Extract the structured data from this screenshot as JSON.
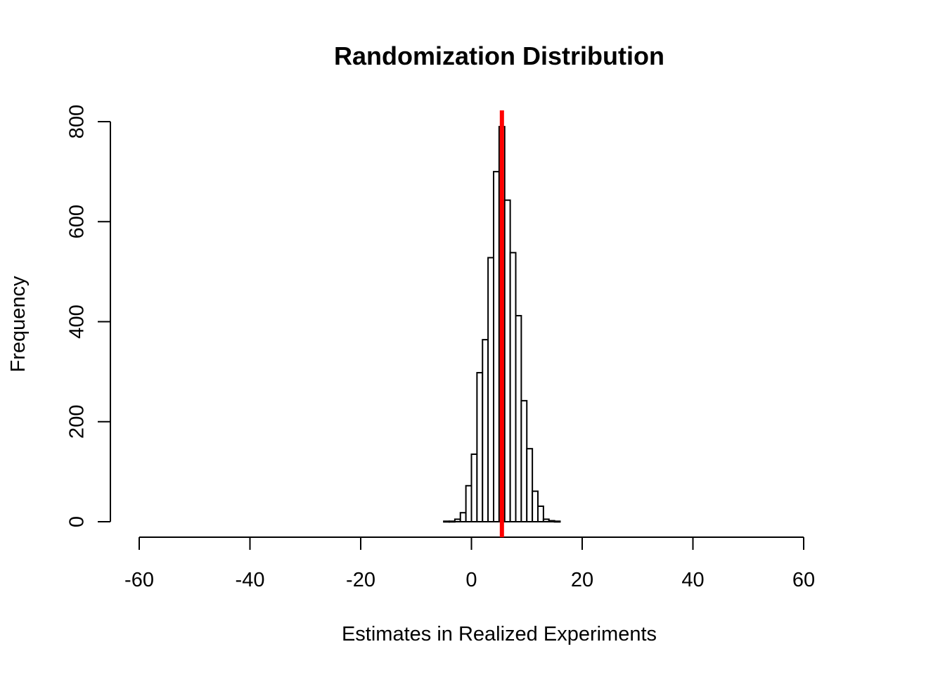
{
  "chart_data": {
    "type": "bar",
    "title": "Randomization Distribution",
    "xlabel": "Estimates in Realized Experiments",
    "ylabel": "Frequency",
    "xlim": [
      -60,
      60
    ],
    "ylim": [
      0,
      800
    ],
    "x_ticks": [
      -60,
      -40,
      -20,
      0,
      20,
      40,
      60
    ],
    "y_ticks": [
      0,
      200,
      400,
      600,
      800
    ],
    "bin_width": 1,
    "bins": [
      {
        "start": -5,
        "end": -4,
        "value": 1
      },
      {
        "start": -4,
        "end": -3,
        "value": 1
      },
      {
        "start": -3,
        "end": -2,
        "value": 5
      },
      {
        "start": -2,
        "end": -1,
        "value": 18
      },
      {
        "start": -1,
        "end": 0,
        "value": 72
      },
      {
        "start": 0,
        "end": 1,
        "value": 135
      },
      {
        "start": 1,
        "end": 2,
        "value": 298
      },
      {
        "start": 2,
        "end": 3,
        "value": 364
      },
      {
        "start": 3,
        "end": 4,
        "value": 528
      },
      {
        "start": 4,
        "end": 5,
        "value": 700
      },
      {
        "start": 5,
        "end": 6,
        "value": 790
      },
      {
        "start": 6,
        "end": 7,
        "value": 643
      },
      {
        "start": 7,
        "end": 8,
        "value": 538
      },
      {
        "start": 8,
        "end": 9,
        "value": 412
      },
      {
        "start": 9,
        "end": 10,
        "value": 242
      },
      {
        "start": 10,
        "end": 11,
        "value": 146
      },
      {
        "start": 11,
        "end": 12,
        "value": 61
      },
      {
        "start": 12,
        "end": 13,
        "value": 31
      },
      {
        "start": 13,
        "end": 14,
        "value": 5
      },
      {
        "start": 14,
        "end": 15,
        "value": 2
      },
      {
        "start": 15,
        "end": 16,
        "value": 1
      }
    ],
    "reference_line": {
      "x": 5.5,
      "color": "#ff0000"
    },
    "grid": false,
    "bar_fill": "#ffffff",
    "bar_stroke": "#000000"
  }
}
